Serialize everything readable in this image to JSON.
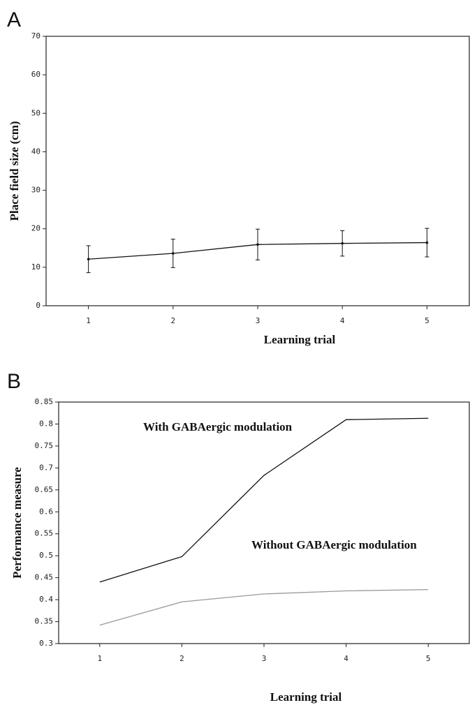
{
  "chart_data": [
    {
      "type": "line",
      "panel_label": "A",
      "xlabel": "Learning trial",
      "ylabel": "Place field size (cm)",
      "x": [
        1,
        2,
        3,
        4,
        5
      ],
      "xlim": [
        0.5,
        5.5
      ],
      "xticks": [
        1,
        2,
        3,
        4,
        5
      ],
      "ylim": [
        0,
        70
      ],
      "yticks": [
        0,
        10,
        20,
        30,
        40,
        50,
        60,
        70
      ],
      "series": [
        {
          "color": "#111111",
          "values": [
            12.1,
            13.6,
            15.9,
            16.2,
            16.4
          ],
          "errors": [
            3.5,
            3.7,
            4.0,
            3.3,
            3.7
          ]
        }
      ]
    },
    {
      "type": "line",
      "panel_label": "B",
      "xlabel": "Learning trial",
      "ylabel": "Performance measure",
      "x": [
        1,
        2,
        3,
        4,
        5
      ],
      "xlim": [
        0.5,
        5.5
      ],
      "xticks": [
        1,
        2,
        3,
        4,
        5
      ],
      "ylim": [
        0.3,
        0.85
      ],
      "yticks": [
        0.3,
        0.35,
        0.4,
        0.45,
        0.5,
        0.55,
        0.6,
        0.65,
        0.7,
        0.75,
        0.8,
        0.85
      ],
      "series": [
        {
          "name": "With GABAergic modulation",
          "color": "#111111",
          "values": [
            0.44,
            0.498,
            0.683,
            0.81,
            0.813
          ]
        },
        {
          "name": "Without GABAergic modulation",
          "color": "#999999",
          "values": [
            0.342,
            0.395,
            0.413,
            0.42,
            0.423
          ]
        }
      ]
    }
  ]
}
